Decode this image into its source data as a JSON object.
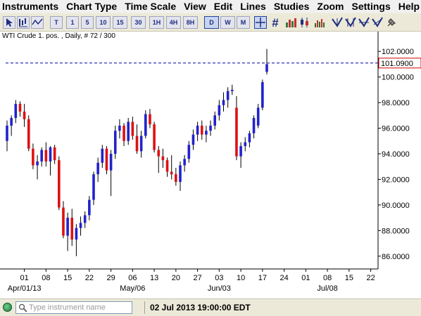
{
  "menu": [
    "Instruments",
    "Chart Type",
    "Time Scale",
    "View",
    "Edit",
    "Lines",
    "Studies",
    "Zoom",
    "Settings",
    "Help"
  ],
  "timeframes": [
    "T",
    "1",
    "5",
    "10",
    "15",
    "30",
    "1H",
    "4H",
    "8H",
    "D",
    "W",
    "M"
  ],
  "active_timeframe": "D",
  "tool_icons": [
    "cursor-zoom-icon",
    "chart-arrow-icon",
    "zigzag-icon",
    "crosshair-icon",
    "hash-icon",
    "bar-chart-icon",
    "tool-a-icon",
    "tool-b-icon",
    "tool-c-icon",
    "tool-d-icon",
    "pin-icon"
  ],
  "chart": {
    "title": "WTI Crude 1. pos. , Daily, # 72 / 300",
    "current_price_label": "101.0900",
    "current_price": 101.09,
    "up_color": "#2222cc",
    "down_color": "#dd1111",
    "price_line_color": "#0000aa"
  },
  "chart_data": {
    "type": "candlestick",
    "ylim": [
      85,
      103
    ],
    "yticks": [
      "102.0000",
      "100.0000",
      "98.0000",
      "96.0000",
      "94.0000",
      "92.0000",
      "90.0000",
      "88.0000",
      "86.0000"
    ],
    "ytick_values": [
      102,
      100,
      98,
      96,
      94,
      92,
      90,
      88,
      86
    ],
    "xticks": [
      {
        "label": "01",
        "index": 4
      },
      {
        "label": "08",
        "index": 9
      },
      {
        "label": "15",
        "index": 14
      },
      {
        "label": "22",
        "index": 19
      },
      {
        "label": "29",
        "index": 24
      },
      {
        "label": "06",
        "index": 29
      },
      {
        "label": "13",
        "index": 34
      },
      {
        "label": "20",
        "index": 39
      },
      {
        "label": "27",
        "index": 44
      },
      {
        "label": "03",
        "index": 49
      },
      {
        "label": "10",
        "index": 54
      },
      {
        "label": "17",
        "index": 59
      },
      {
        "label": "24",
        "index": 64
      },
      {
        "label": "01",
        "index": 69
      },
      {
        "label": "08",
        "index": 74
      },
      {
        "label": "15",
        "index": 79
      },
      {
        "label": "22",
        "index": 84
      }
    ],
    "month_labels": [
      {
        "label": "Apr/01/13",
        "index": 4
      },
      {
        "label": "May/06",
        "index": 29
      },
      {
        "label": "Jun/03",
        "index": 49
      },
      {
        "label": "Jul/08",
        "index": 74
      }
    ],
    "candles": [
      [
        95.0,
        96.6,
        94.2,
        96.2
      ],
      [
        96.2,
        97.0,
        95.4,
        96.8
      ],
      [
        96.8,
        98.2,
        96.4,
        97.9
      ],
      [
        97.9,
        98.1,
        96.9,
        97.3
      ],
      [
        97.3,
        97.9,
        96.1,
        96.7
      ],
      [
        96.7,
        97.0,
        94.2,
        94.4
      ],
      [
        94.4,
        94.8,
        92.8,
        93.1
      ],
      [
        93.1,
        93.9,
        92.0,
        93.4
      ],
      [
        93.4,
        94.5,
        93.0,
        94.3
      ],
      [
        94.3,
        94.9,
        93.0,
        93.4
      ],
      [
        93.4,
        94.6,
        92.3,
        94.5
      ],
      [
        94.5,
        94.7,
        93.2,
        93.5
      ],
      [
        93.5,
        93.8,
        89.6,
        89.8
      ],
      [
        89.8,
        90.3,
        87.4,
        87.6
      ],
      [
        87.6,
        89.4,
        86.4,
        89.0
      ],
      [
        89.0,
        89.7,
        86.8,
        87.3
      ],
      [
        87.3,
        88.5,
        86.0,
        88.2
      ],
      [
        88.2,
        89.1,
        87.6,
        88.6
      ],
      [
        88.6,
        89.5,
        88.2,
        89.2
      ],
      [
        89.2,
        90.7,
        88.8,
        90.4
      ],
      [
        90.4,
        92.6,
        90.0,
        92.4
      ],
      [
        92.4,
        93.7,
        91.8,
        93.3
      ],
      [
        93.3,
        94.7,
        92.9,
        94.4
      ],
      [
        94.4,
        94.6,
        92.4,
        92.7
      ],
      [
        92.7,
        94.3,
        90.7,
        94.0
      ],
      [
        94.0,
        96.2,
        93.6,
        95.8
      ],
      [
        95.8,
        96.7,
        95.2,
        96.2
      ],
      [
        96.2,
        96.4,
        94.6,
        95.0
      ],
      [
        95.0,
        96.8,
        94.7,
        96.5
      ],
      [
        96.5,
        96.9,
        95.1,
        95.4
      ],
      [
        95.4,
        96.3,
        94.0,
        94.2
      ],
      [
        94.2,
        95.8,
        93.7,
        95.4
      ],
      [
        95.4,
        97.4,
        95.2,
        97.1
      ],
      [
        97.1,
        97.5,
        96.0,
        96.3
      ],
      [
        96.3,
        96.5,
        94.1,
        94.3
      ],
      [
        94.3,
        94.6,
        92.5,
        93.8
      ],
      [
        93.8,
        94.4,
        92.9,
        93.5
      ],
      [
        93.5,
        93.7,
        92.2,
        92.6
      ],
      [
        92.6,
        93.9,
        92.0,
        92.4
      ],
      [
        92.4,
        92.9,
        91.5,
        91.8
      ],
      [
        91.8,
        93.4,
        91.1,
        93.1
      ],
      [
        93.1,
        93.9,
        92.6,
        93.6
      ],
      [
        93.6,
        95.0,
        93.3,
        94.7
      ],
      [
        94.7,
        95.9,
        94.3,
        95.5
      ],
      [
        95.5,
        96.5,
        95.0,
        96.2
      ],
      [
        96.2,
        96.6,
        95.1,
        95.5
      ],
      [
        95.5,
        96.2,
        94.9,
        95.8
      ],
      [
        95.8,
        96.6,
        95.4,
        96.2
      ],
      [
        96.2,
        97.3,
        95.9,
        97.0
      ],
      [
        97.0,
        98.2,
        96.6,
        97.8
      ],
      [
        97.8,
        98.8,
        97.3,
        98.2
      ],
      [
        98.2,
        99.2,
        97.6,
        98.9
      ],
      [
        98.9,
        99.4,
        98.6,
        99.0
      ],
      [
        97.6,
        98.5,
        93.5,
        93.8
      ],
      [
        93.8,
        94.9,
        92.9,
        94.6
      ],
      [
        94.6,
        95.3,
        94.2,
        94.9
      ],
      [
        94.9,
        95.8,
        94.5,
        95.6
      ],
      [
        95.6,
        97.0,
        95.2,
        96.8
      ],
      [
        96.2,
        97.9,
        96.0,
        97.6
      ],
      [
        97.6,
        99.8,
        97.4,
        99.6
      ],
      [
        100.4,
        102.2,
        100.2,
        101.0
      ]
    ]
  },
  "status": {
    "search_placeholder": "Type instrument name",
    "datetime": "02 Jul 2013 19:00:00 EDT"
  }
}
